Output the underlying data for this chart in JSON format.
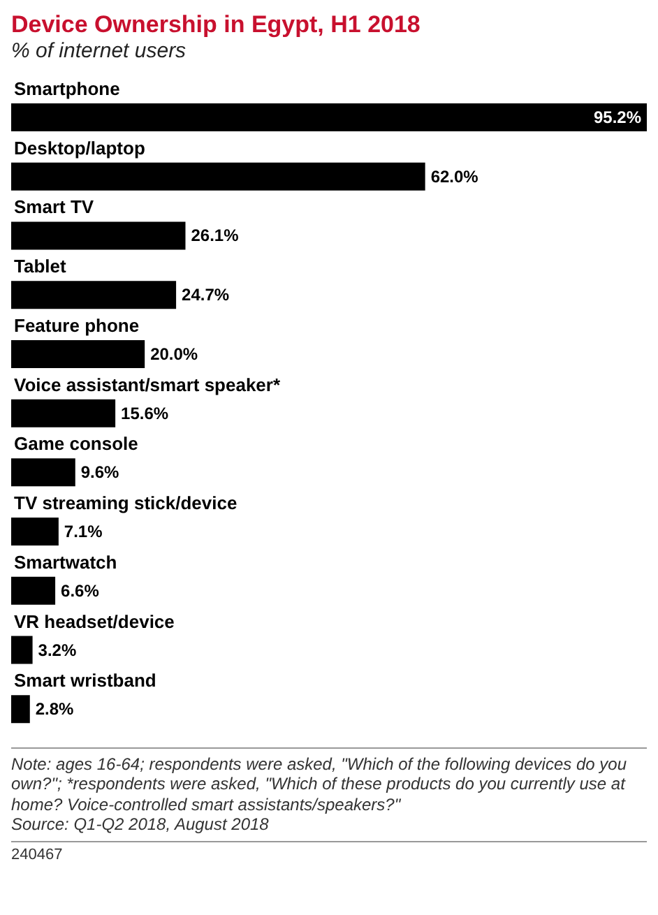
{
  "chart_data": {
    "type": "bar",
    "orientation": "horizontal",
    "title": "Device Ownership in Egypt, H1 2018",
    "subtitle": "% of internet users",
    "categories": [
      "Smartphone",
      "Desktop/laptop",
      "Smart TV",
      "Tablet",
      "Feature phone",
      "Voice assistant/smart speaker*",
      "Game console",
      "TV streaming stick/device",
      "Smartwatch",
      "VR headset/device",
      "Smart wristband"
    ],
    "values": [
      95.2,
      62.0,
      26.1,
      24.7,
      20.0,
      15.6,
      9.6,
      7.1,
      6.6,
      3.2,
      2.8
    ],
    "value_labels": [
      "95.2%",
      "62.0%",
      "26.1%",
      "24.7%",
      "20.0%",
      "15.6%",
      "9.6%",
      "7.1%",
      "6.6%",
      "3.2%",
      "2.8%"
    ],
    "color": "#000000",
    "annotations": [
      "Note: ages 16-64; respondents were asked, \"Which of the following devices do you own?\"; *respondents were asked, \"Which of these products do you currently use at home? Voice-controlled smart assistants/speakers?\"",
      "Source: Q1-Q2 2018, August 2018",
      "240467"
    ]
  }
}
